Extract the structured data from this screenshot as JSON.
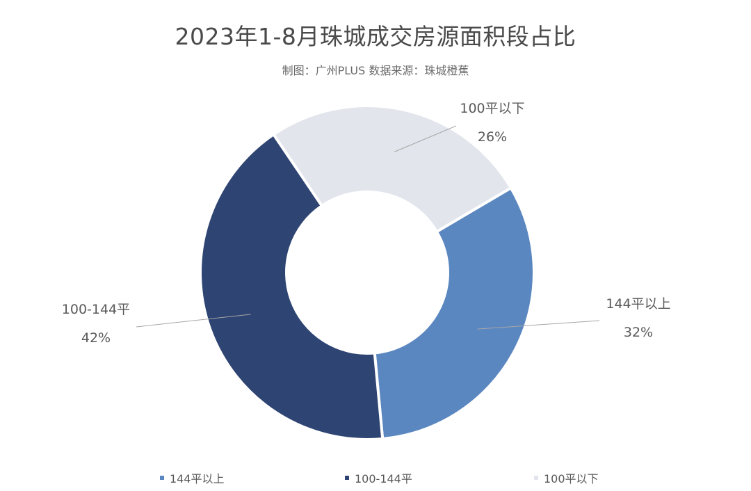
{
  "title": "2023年1-8月珠城成交房源面积段占比",
  "subtitle": "制图：广州PLUS  数据来源：珠城橙蕉",
  "chart_data": {
    "type": "pie",
    "donut": true,
    "categories": [
      "144平以上",
      "100-144平",
      "100平以下"
    ],
    "values": [
      32,
      42,
      26
    ],
    "labels": [
      "32%",
      "42%",
      "26%"
    ],
    "colors": [
      "#5b87c0",
      "#2e4472",
      "#e2e5ec"
    ],
    "legend_position": "bottom"
  }
}
